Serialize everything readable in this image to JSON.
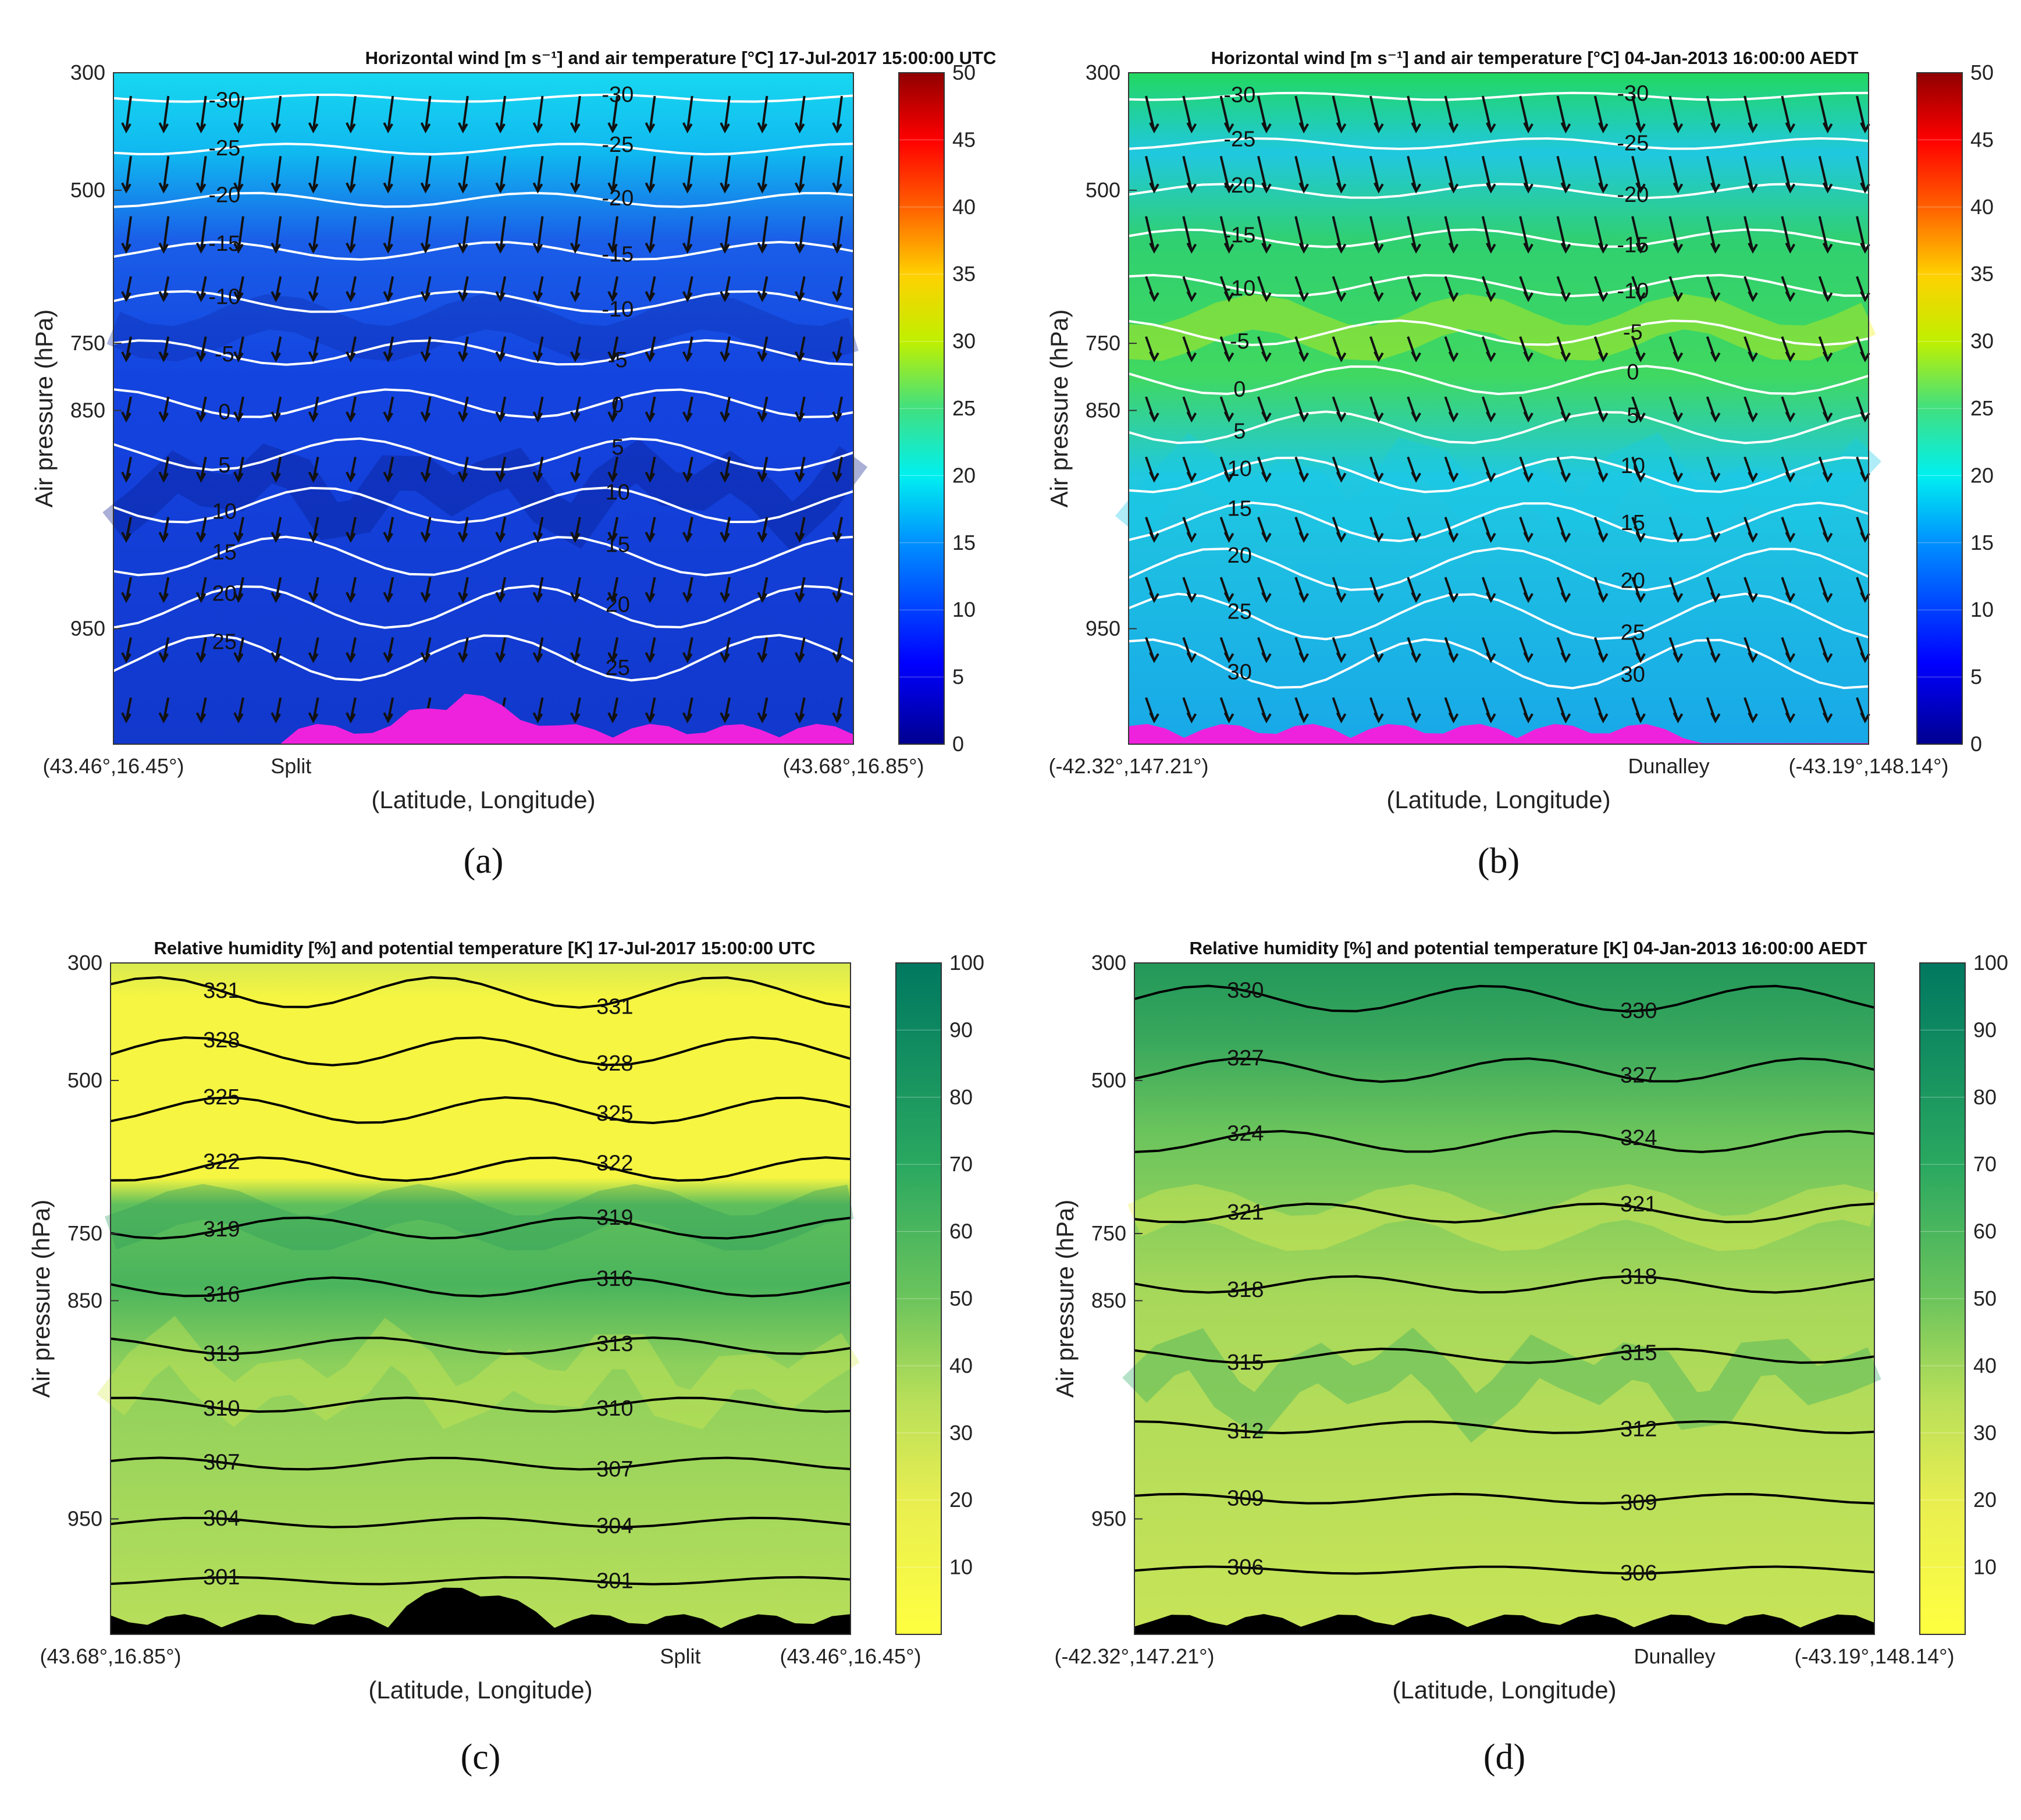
{
  "figure": {
    "panels": [
      {
        "tag": "(a)",
        "title": "Horizontal wind [m s⁻¹] and air temperature [°C] 17-Jul-2017 15:00:00 UTC",
        "xlabel": "(Latitude, Longitude)",
        "ylabel": "Air pressure (hPa)",
        "x_left": "(43.46°,16.45°)",
        "x_mid": "Split",
        "x_right": "(43.68°,16.85°)",
        "colorbar_ticks": [
          "0",
          "5",
          "10",
          "15",
          "20",
          "25",
          "30",
          "35",
          "40",
          "45",
          "50"
        ]
      },
      {
        "tag": "(b)",
        "title": "Horizontal wind [m s⁻¹] and air temperature [°C] 04-Jan-2013 16:00:00 AEDT",
        "xlabel": "(Latitude, Longitude)",
        "ylabel": "Air pressure (hPa)",
        "x_left": "(-42.32°,147.21°)",
        "x_mid": "Dunalley",
        "x_right": "(-43.19°,148.14°)",
        "colorbar_ticks": [
          "0",
          "5",
          "10",
          "15",
          "20",
          "25",
          "30",
          "35",
          "40",
          "45",
          "50"
        ]
      },
      {
        "tag": "(c)",
        "title": "Relative humidity [%] and potential temperature [K] 17-Jul-2017 15:00:00 UTC",
        "xlabel": "(Latitude, Longitude)",
        "ylabel": "Air pressure (hPa)",
        "x_left": "(43.68°,16.85°)",
        "x_mid": "Split",
        "x_right": "(43.46°,16.45°)",
        "colorbar_ticks": [
          "10",
          "20",
          "30",
          "40",
          "50",
          "60",
          "70",
          "80",
          "90",
          "100"
        ]
      },
      {
        "tag": "(d)",
        "title": "Relative humidity [%] and potential temperature [K] 04-Jan-2013 16:00:00 AEDT",
        "xlabel": "(Latitude, Longitude)",
        "ylabel": "Air pressure (hPa)",
        "x_left": "(-42.32°,147.21°)",
        "x_mid": "Dunalley",
        "x_right": "(-43.19°,148.14°)",
        "colorbar_ticks": [
          "10",
          "20",
          "30",
          "40",
          "50",
          "60",
          "70",
          "80",
          "90",
          "100"
        ]
      }
    ],
    "y_ticks": [
      "300",
      "500",
      "750",
      "850",
      "950"
    ]
  },
  "chart_data": [
    {
      "type": "heatmap",
      "panel": "a",
      "title": "Horizontal wind [m s-1] and air temperature [°C] 17-Jul-2017 15:00:00 UTC",
      "xlabel": "(Latitude, Longitude)",
      "ylabel": "Air pressure (hPa)",
      "y_ticks": [
        300,
        500,
        750,
        850,
        950
      ],
      "y_direction": "reversed",
      "colorbar": {
        "variable": "wind speed [m s-1]",
        "range": [
          0,
          50
        ],
        "step": 5
      },
      "contours": {
        "variable": "air temperature [°C]",
        "color": "#ffffff",
        "levels": [
          -30,
          -25,
          -20,
          -15,
          -10,
          -5,
          0,
          5,
          10,
          15,
          20,
          25
        ],
        "labels": [
          "-30",
          "-25",
          "-20",
          "-15",
          "-10",
          "-5",
          "-5",
          "0",
          "0",
          "5",
          "10",
          "15",
          "20",
          "25",
          "25",
          "20",
          "5",
          "20",
          "25",
          "20"
        ]
      },
      "colors": {
        "fill_low": "#0a1a8a",
        "fill_mid": "#1444e0",
        "fill_high": "#18d8f0",
        "terrain": "#ee22dd"
      }
    },
    {
      "type": "heatmap",
      "panel": "b",
      "title": "Horizontal wind [m s-1] and air temperature [°C] 04-Jan-2013 16:00:00 AEDT",
      "xlabel": "(Latitude, Longitude)",
      "ylabel": "Air pressure (hPa)",
      "y_ticks": [
        300,
        500,
        750,
        850,
        950
      ],
      "y_direction": "reversed",
      "colorbar": {
        "variable": "wind speed [m s-1]",
        "range": [
          0,
          50
        ],
        "step": 5
      },
      "contours": {
        "variable": "air temperature [°C]",
        "color": "#ffffff",
        "levels": [
          -30,
          -25,
          -20,
          -15,
          -10,
          -5,
          0,
          5,
          10,
          15,
          20,
          25,
          30
        ],
        "labels": [
          "-30",
          "-25",
          "-20",
          "-15",
          "-10",
          "-5",
          "0",
          "5",
          "10",
          "15",
          "20",
          "25",
          "30",
          "-30",
          "-25",
          "-20",
          "-15",
          "-10",
          "-5",
          "0",
          "5",
          "10",
          "15",
          "20",
          "25",
          "30",
          "25",
          "30",
          "30",
          "30",
          "30",
          "0"
        ]
      },
      "colors": {
        "fill_low": "#18c8e8",
        "fill_mid": "#30d880",
        "fill_high": "#f0f000",
        "terrain": "#ee22dd"
      }
    },
    {
      "type": "heatmap",
      "panel": "c",
      "title": "Relative humidity [%] and potential temperature [K] 17-Jul-2017 15:00:00 UTC",
      "xlabel": "(Latitude, Longitude)",
      "ylabel": "Air pressure (hPa)",
      "y_ticks": [
        300,
        500,
        750,
        850,
        950
      ],
      "y_direction": "reversed",
      "colorbar": {
        "variable": "relative humidity [%]",
        "range": [
          0,
          100
        ],
        "step": 10
      },
      "contours": {
        "variable": "potential temperature [K]",
        "color": "#000000",
        "levels": [
          301,
          304,
          307,
          310,
          313,
          316,
          319,
          322,
          325,
          328,
          331
        ],
        "labels": [
          "331",
          "328",
          "325",
          "322",
          "319",
          "316",
          "313",
          "310",
          "307",
          "304",
          "307",
          "304",
          "331",
          "328",
          "325",
          "322",
          "319",
          "316",
          "313",
          "310",
          "304",
          "301",
          "301",
          "301",
          "301",
          "301"
        ]
      },
      "colors": {
        "fill_low": "#f5f542",
        "fill_mid": "#b8df5a",
        "fill_high": "#2aa860",
        "terrain": "#000000"
      }
    },
    {
      "type": "heatmap",
      "panel": "d",
      "title": "Relative humidity [%] and potential temperature [K] 04-Jan-2013 16:00:00 AEDT",
      "xlabel": "(Latitude, Longitude)",
      "ylabel": "Air pressure (hPa)",
      "y_ticks": [
        300,
        500,
        750,
        850,
        950
      ],
      "y_direction": "reversed",
      "colorbar": {
        "variable": "relative humidity [%]",
        "range": [
          0,
          100
        ],
        "step": 10
      },
      "contours": {
        "variable": "potential temperature [K]",
        "color": "#000000",
        "levels": [
          306,
          309,
          312,
          315,
          318,
          321,
          324,
          327,
          330
        ],
        "labels": [
          "330",
          "327",
          "324",
          "321",
          "318",
          "315",
          "312",
          "309",
          "330",
          "327",
          "324",
          "321",
          "318",
          "315",
          "312",
          "309",
          "309",
          "309",
          "306"
        ]
      },
      "colors": {
        "fill_low": "#f5f542",
        "fill_mid": "#b8df5a",
        "fill_high": "#2aa860",
        "terrain": "#000000"
      }
    }
  ]
}
